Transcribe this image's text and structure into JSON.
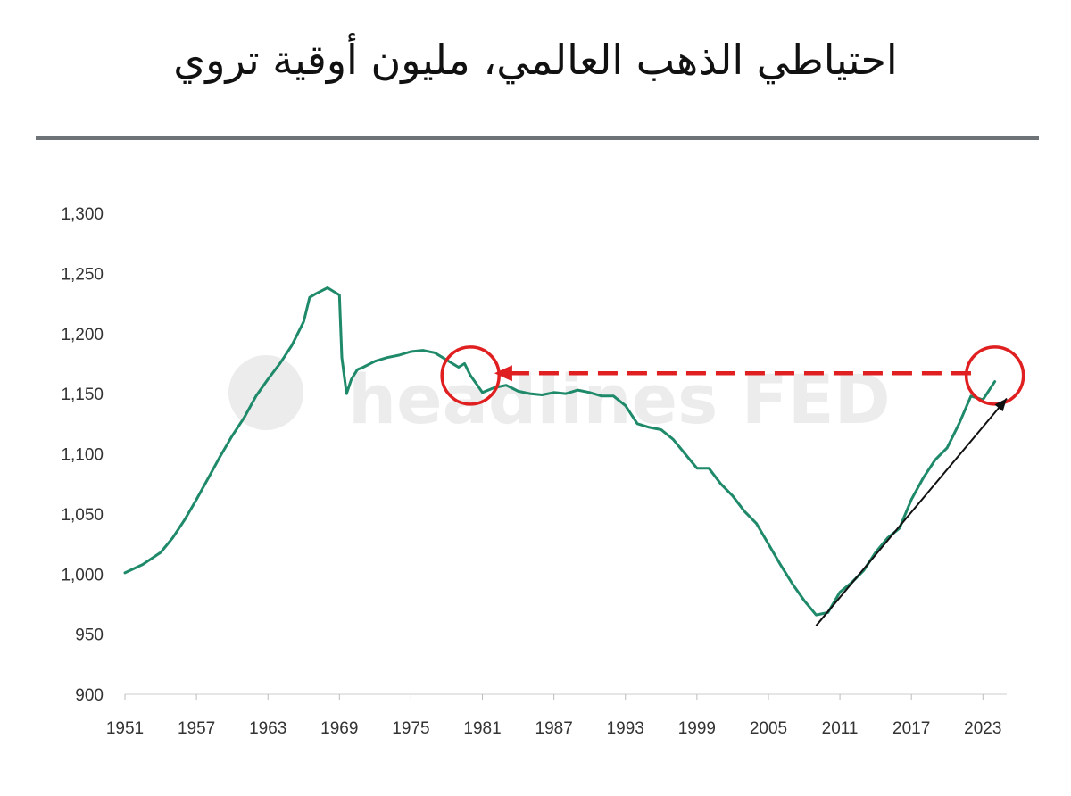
{
  "title": "احتياطي الذهب العالمي، مليون أوقية تروي",
  "watermark": "headlines FED",
  "colors": {
    "line": "#1f8a6a",
    "circle": "#e02020",
    "arrow_red": "#e02020",
    "arrow_black": "#111111"
  },
  "chart_data": {
    "type": "line",
    "title": "احتياطي الذهب العالمي، مليون أوقية تروي",
    "xlabel": "",
    "ylabel": "",
    "xlim": [
      1951,
      2025
    ],
    "ylim": [
      900,
      1300
    ],
    "x_ticks": [
      "1951",
      "1957",
      "1963",
      "1969",
      "1975",
      "1981",
      "1987",
      "1993",
      "1999",
      "2005",
      "2011",
      "2017",
      "2023"
    ],
    "y_ticks": [
      "900",
      "950",
      "1,000",
      "1,050",
      "1,100",
      "1,150",
      "1,200",
      "1,250",
      "1,300"
    ],
    "grid": false,
    "series": [
      {
        "x": [
          1951.0,
          1952.5,
          1954.0,
          1955.0,
          1956.0,
          1957.0,
          1958.0,
          1959.0,
          1960.0,
          1961.0,
          1962.0,
          1963.0,
          1964.0,
          1965.0,
          1966.0,
          1966.5,
          1967.0,
          1968.0,
          1969.0,
          1969.2,
          1969.6,
          1970.0,
          1970.5,
          1971.0,
          1972.0,
          1973.0,
          1974.0,
          1975.0,
          1976.0,
          1977.0,
          1978.0,
          1979.0,
          1979.5,
          1980.0,
          1980.5,
          1981.0,
          1982.0,
          1983.0,
          1984.0,
          1985.0,
          1986.0,
          1987.0,
          1988.0,
          1989.0,
          1990.0,
          1991.0,
          1992.0,
          1993.0,
          1994.0,
          1995.0,
          1996.0,
          1997.0,
          1998.0,
          1999.0,
          2000.0,
          2001.0,
          2002.0,
          2003.0,
          2004.0,
          2005.0,
          2006.0,
          2007.0,
          2008.0,
          2009.0,
          2010.0,
          2011.0,
          2012.0,
          2013.0,
          2014.0,
          2015.0,
          2016.0,
          2017.0,
          2018.0,
          2019.0,
          2020.0,
          2021.0,
          2022.0,
          2023.0,
          2024.0
        ],
        "values": [
          1001,
          1008,
          1018,
          1030,
          1045,
          1062,
          1080,
          1098,
          1115,
          1130,
          1148,
          1162,
          1175,
          1190,
          1210,
          1230,
          1233,
          1238,
          1232,
          1180,
          1150,
          1162,
          1170,
          1172,
          1177,
          1180,
          1182,
          1185,
          1186,
          1184,
          1178,
          1172,
          1175,
          1165,
          1158,
          1151,
          1155,
          1157,
          1152,
          1150,
          1149,
          1151,
          1150,
          1153,
          1151,
          1148,
          1148,
          1140,
          1125,
          1122,
          1120,
          1112,
          1100,
          1088,
          1088,
          1075,
          1065,
          1052,
          1042,
          1025,
          1008,
          992,
          978,
          966,
          968,
          985,
          993,
          1003,
          1018,
          1030,
          1038,
          1062,
          1080,
          1095,
          1105,
          1125,
          1148,
          1145,
          1160
        ]
      }
    ],
    "annotations": [
      {
        "type": "circle",
        "x": 1980,
        "y": 1165
      },
      {
        "type": "circle",
        "x": 2024,
        "y": 1165
      },
      {
        "type": "dashed-arrow",
        "from": [
          2022,
          1167
        ],
        "to": [
          1982,
          1167
        ]
      },
      {
        "type": "arrow",
        "from": [
          2009,
          957
        ],
        "to": [
          2025,
          1146
        ]
      }
    ]
  }
}
